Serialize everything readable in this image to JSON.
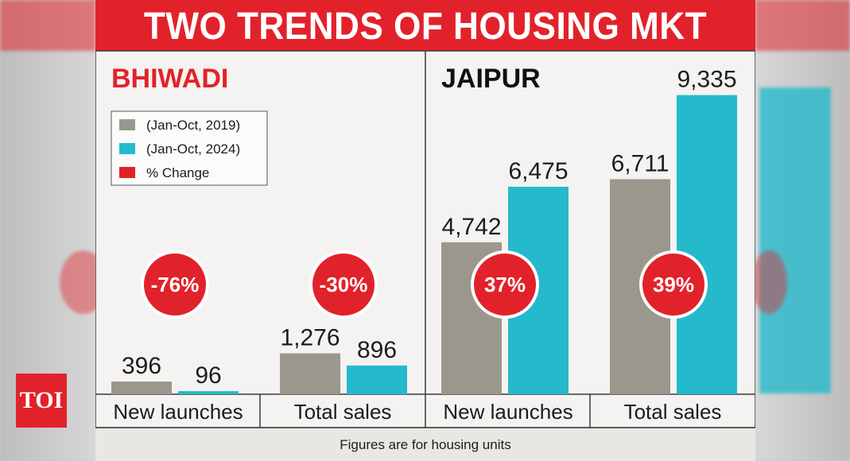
{
  "header": {
    "title": "TWO TRENDS OF HOUSING MKT"
  },
  "logo": {
    "text": "TOI"
  },
  "footer": {
    "note": "Figures are for housing units"
  },
  "colors": {
    "series_2019": "#9b978d",
    "series_2024": "#25b9cc",
    "change": "#e2222b"
  },
  "legend": [
    {
      "label": "(Jan-Oct, 2019)",
      "color": "#9b978d"
    },
    {
      "label": "(Jan-Oct, 2024)",
      "color": "#25b9cc"
    },
    {
      "label": "% Change",
      "color": "#e2222b"
    }
  ],
  "chart_data": [
    {
      "type": "bar",
      "panel_title": "BHIWADI",
      "categories": [
        "New launches",
        "Total sales"
      ],
      "series": [
        {
          "name": "(Jan-Oct, 2019)",
          "values": [
            396,
            1276
          ],
          "labels": [
            "396",
            "1,276"
          ]
        },
        {
          "name": "(Jan-Oct, 2024)",
          "values": [
            96,
            896
          ],
          "labels": [
            "96",
            "896"
          ]
        }
      ],
      "change": [
        "-76%",
        "-30%"
      ],
      "ylim": [
        0,
        9500
      ],
      "grid": false,
      "legend_position": "top-left"
    },
    {
      "type": "bar",
      "panel_title": "JAIPUR",
      "categories": [
        "New launches",
        "Total sales"
      ],
      "series": [
        {
          "name": "(Jan-Oct, 2019)",
          "values": [
            4742,
            6711
          ],
          "labels": [
            "4,742",
            "6,711"
          ]
        },
        {
          "name": "(Jan-Oct, 2024)",
          "values": [
            6475,
            9335
          ],
          "labels": [
            "6,475",
            "9,335"
          ]
        }
      ],
      "change": [
        "37%",
        "39%"
      ],
      "ylim": [
        0,
        9500
      ],
      "grid": false
    }
  ]
}
